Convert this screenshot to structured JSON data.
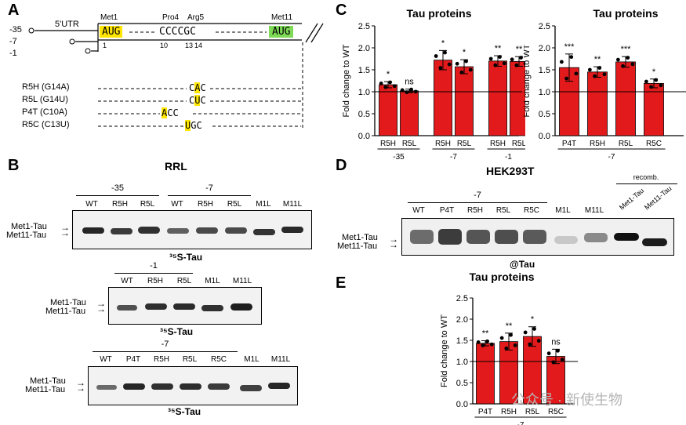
{
  "panelA": {
    "label": "A",
    "site_labels": [
      "-35",
      "-7",
      "-1"
    ],
    "utr_label": "5'UTR",
    "codon_labels": [
      "Met1",
      "Pro4",
      "Arg5",
      "Met11"
    ],
    "start_codon": "AUG",
    "middle_seq": "CCCCGC",
    "end_codon": "AUG",
    "positions": [
      "1",
      "10",
      "13",
      "14"
    ],
    "mutants": [
      {
        "name": "R5H (G14A)",
        "seq_pre": "C",
        "seq_hl": "A",
        "seq_post": "C"
      },
      {
        "name": "R5L (G14U)",
        "seq_pre": "C",
        "seq_hl": "U",
        "seq_post": "C"
      },
      {
        "name": "P4T (C10A)",
        "seq_pre": "",
        "seq_hl": "A",
        "seq_post": "CC"
      },
      {
        "name": "R5C (C13U)",
        "seq_pre": "",
        "seq_hl": "U",
        "seq_post": "GC"
      }
    ]
  },
  "panelB": {
    "label": "B",
    "title": "RRL",
    "gel1": {
      "groups": [
        "-35",
        "-7"
      ],
      "lanes": [
        "WT",
        "R5H",
        "R5L",
        "WT",
        "R5H",
        "R5L",
        "M1L",
        "M11L"
      ],
      "caption": "³⁵S-Tau"
    },
    "gel2": {
      "groups": [
        "-1"
      ],
      "lanes": [
        "WT",
        "R5H",
        "R5L",
        "M1L",
        "M11L"
      ],
      "caption": "³⁵S-Tau"
    },
    "gel3": {
      "groups": [
        "-7"
      ],
      "lanes": [
        "WT",
        "P4T",
        "R5H",
        "R5L",
        "R5C",
        "M1L",
        "M11L"
      ],
      "caption": "³⁵S-Tau"
    },
    "band_labels": [
      "Met1-Tau",
      "Met11-Tau"
    ]
  },
  "panelC": {
    "label": "C"
  },
  "panelD": {
    "label": "D",
    "title": "HEK293T",
    "group": "-7",
    "group_recomb": "recomb.",
    "lanes": [
      "WT",
      "P4T",
      "R5H",
      "R5L",
      "R5C",
      "M1L",
      "M11L"
    ],
    "recomb_lanes": [
      "Met1-Tau",
      "Met11-Tau"
    ],
    "caption": "@Tau",
    "band_labels": [
      "Met1-Tau",
      "Met11-Tau"
    ]
  },
  "panelE": {
    "label": "E"
  },
  "watermark": "公众号 · 新使生物",
  "chart_data": [
    {
      "type": "bar",
      "title": "Tau proteins",
      "ylabel": "Fold change to WT",
      "ylim": [
        0,
        2.5
      ],
      "yticks": [
        "0.0",
        "0.5",
        "1.0",
        "1.5",
        "2.0",
        "2.5"
      ],
      "reference_line": 1.0,
      "categories": [
        "R5H",
        "R5L",
        "R5H",
        "R5L",
        "R5H",
        "R5L"
      ],
      "groups": [
        "-35",
        "-7",
        "-1"
      ],
      "values": [
        1.16,
        1.02,
        1.72,
        1.57,
        1.7,
        1.69
      ],
      "errors": [
        0.07,
        0.04,
        0.22,
        0.16,
        0.12,
        0.11
      ],
      "significance": [
        "*",
        "ns",
        "*",
        "*",
        "**",
        "**"
      ],
      "color": "#e31a1c"
    },
    {
      "type": "bar",
      "title": "Tau proteins",
      "ylabel": "Fold change to WT",
      "ylim": [
        0,
        2.5
      ],
      "yticks": [
        "0.0",
        "0.5",
        "1.0",
        "1.5",
        "2.0",
        "2.5"
      ],
      "reference_line": 1.0,
      "categories": [
        "P4T",
        "R5H",
        "R5L",
        "R5C"
      ],
      "groups": [
        "-7"
      ],
      "values": [
        1.55,
        1.45,
        1.68,
        1.19
      ],
      "errors": [
        0.31,
        0.12,
        0.12,
        0.1
      ],
      "significance": [
        "***",
        "**",
        "***",
        "*"
      ],
      "color": "#e31a1c"
    },
    {
      "type": "bar",
      "title": "Tau proteins",
      "ylabel": "Fold change to WT",
      "ylim": [
        0,
        2.5
      ],
      "yticks": [
        "0.0",
        "0.5",
        "1.0",
        "1.5",
        "2.0",
        "2.5"
      ],
      "reference_line": 1.0,
      "categories": [
        "P4T",
        "R5H",
        "R5L",
        "R5C"
      ],
      "groups": [
        "-7"
      ],
      "values": [
        1.43,
        1.47,
        1.59,
        1.12
      ],
      "errors": [
        0.06,
        0.2,
        0.23,
        0.17
      ],
      "significance": [
        "**",
        "**",
        "*",
        "ns"
      ],
      "color": "#e31a1c"
    }
  ]
}
